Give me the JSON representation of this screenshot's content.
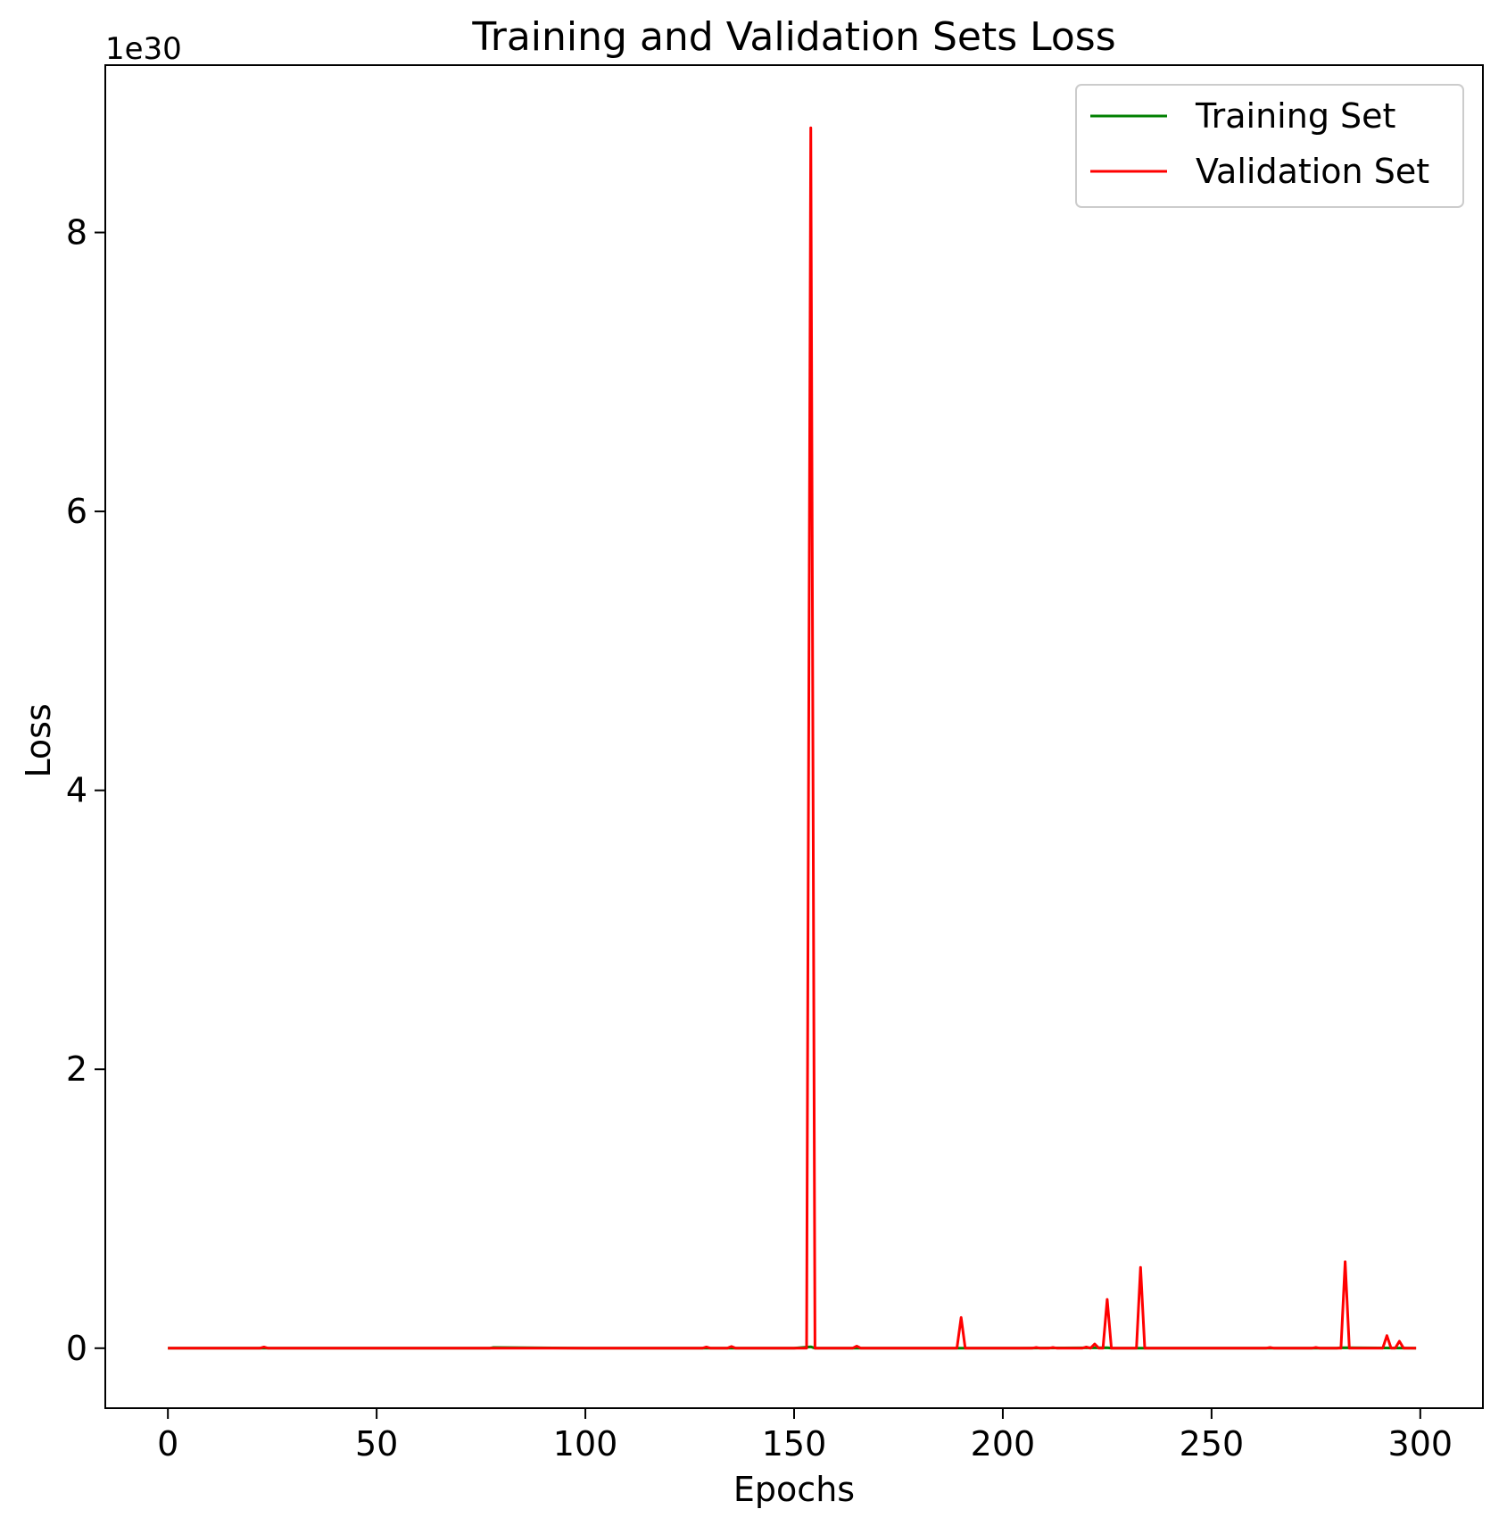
{
  "chart_data": {
    "type": "line",
    "title": "Training and Validation Sets Loss",
    "xlabel": "Epochs",
    "ylabel": "Loss",
    "y_offset_label": "1e30",
    "xlim": [
      -15,
      315
    ],
    "ylim": [
      -0.43,
      9.2
    ],
    "x_ticks": [
      0,
      50,
      100,
      150,
      200,
      250,
      300
    ],
    "x_tick_labels": [
      "0",
      "50",
      "100",
      "150",
      "200",
      "250",
      "300"
    ],
    "y_ticks": [
      0,
      2,
      4,
      6,
      8
    ],
    "y_tick_labels": [
      "0",
      "2",
      "4",
      "6",
      "8"
    ],
    "grid": false,
    "legend_position": "top-right",
    "series": [
      {
        "name": "Training Set",
        "color": "#008000",
        "x": [
          0,
          50,
          77,
          78,
          100,
          150,
          154,
          155,
          200,
          225,
          226,
          250,
          280,
          281,
          299
        ],
        "y": [
          0,
          0,
          0,
          0.005,
          0,
          0,
          0.01,
          0,
          0,
          0.004,
          0,
          0,
          0,
          0.004,
          0
        ]
      },
      {
        "name": "Validation Set",
        "color": "#ff0000",
        "x": [
          0,
          22,
          23,
          24,
          128,
          129,
          130,
          134,
          135,
          136,
          153,
          154,
          155,
          164,
          165,
          166,
          189,
          190,
          191,
          207,
          208,
          209,
          211,
          212,
          213,
          219,
          220,
          221,
          222,
          223,
          224,
          225,
          226,
          232,
          233,
          234,
          263,
          264,
          265,
          274,
          275,
          276,
          281,
          282,
          283,
          291,
          292,
          293,
          294,
          295,
          296,
          299
        ],
        "y": [
          0,
          0,
          0.008,
          0,
          0,
          0.008,
          0,
          0,
          0.012,
          0,
          0,
          8.75,
          0,
          0,
          0.015,
          0,
          0,
          0.22,
          0,
          0,
          0.005,
          0,
          0,
          0.005,
          0,
          0,
          0.008,
          0,
          0.03,
          0,
          0,
          0.35,
          0,
          0,
          0.58,
          0,
          0,
          0.005,
          0,
          0,
          0.005,
          0,
          0,
          0.62,
          0,
          0,
          0.09,
          0,
          0,
          0.05,
          0,
          0
        ]
      }
    ]
  }
}
